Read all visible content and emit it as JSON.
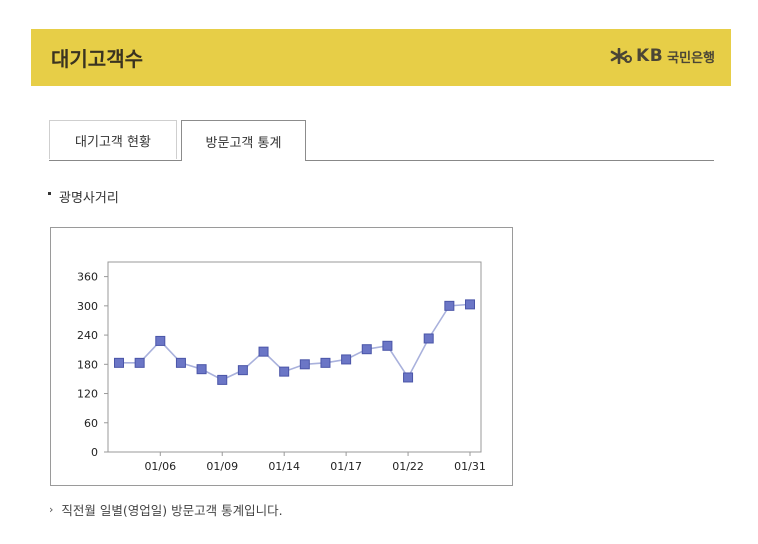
{
  "header": {
    "title": "대기고객수"
  },
  "logo": {
    "mark": "KB",
    "name": "국민은행"
  },
  "tabs": [
    {
      "label": "대기고객 현황",
      "active": false
    },
    {
      "label": "방문고객 통계",
      "active": true
    }
  ],
  "branch": {
    "name": "광명사거리"
  },
  "note": {
    "text": "직전월 일별(영업일) 방문고객 통계입니다."
  },
  "colors": {
    "header_bg": "#e7ce47",
    "line": "#a9b1dc",
    "marker": "#6b76c6",
    "marker_border": "#4a55a8"
  },
  "chart_data": {
    "type": "line",
    "title": "",
    "xlabel": "",
    "ylabel": "",
    "ylim": [
      0,
      390
    ],
    "yticks": [
      0,
      60,
      120,
      180,
      240,
      300,
      360
    ],
    "grid": false,
    "x_tick_labels": [
      {
        "label": "01/06",
        "index": 2
      },
      {
        "label": "01/09",
        "index": 5
      },
      {
        "label": "01/14",
        "index": 8
      },
      {
        "label": "01/17",
        "index": 11
      },
      {
        "label": "01/22",
        "index": 14
      },
      {
        "label": "01/31",
        "index": 17
      }
    ],
    "series": [
      {
        "values": [
          183,
          183,
          228,
          183,
          170,
          148,
          168,
          206,
          165,
          180,
          183,
          190,
          211,
          218,
          153,
          233,
          300,
          303
        ]
      }
    ]
  }
}
